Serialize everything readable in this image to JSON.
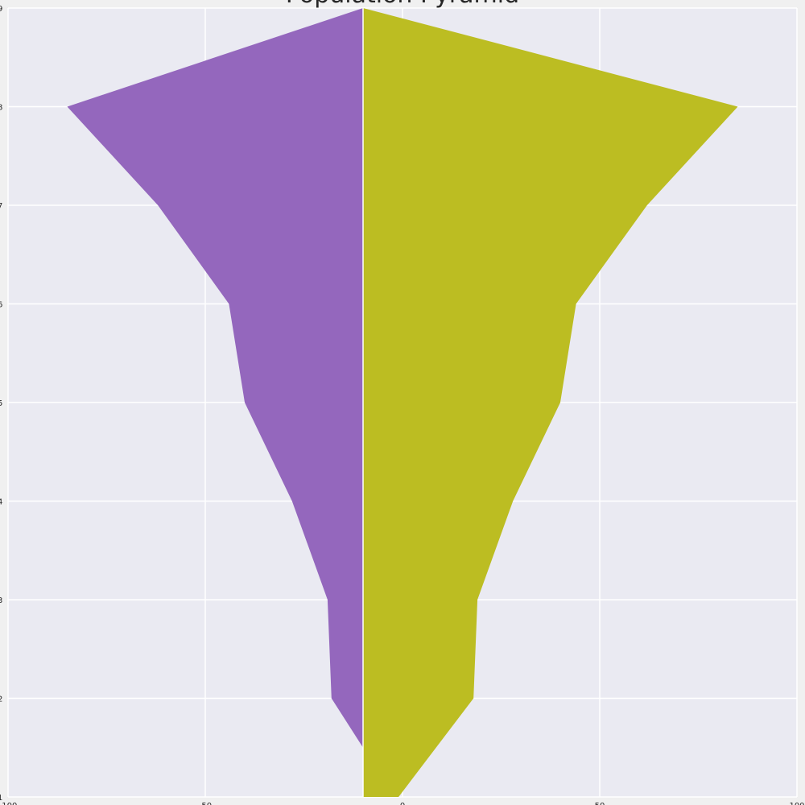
{
  "chart_data": {
    "type": "area",
    "title": "Population Pyramid",
    "xlabel": "",
    "ylabel": "",
    "xlim": [
      -100,
      100
    ],
    "ylim": [
      1,
      9
    ],
    "x_ticks": [
      "-100",
      "-50",
      "0",
      "50",
      "100"
    ],
    "y_ticks": [
      "1",
      "2",
      "3",
      "4",
      "5",
      "6",
      "7",
      "8",
      "9"
    ],
    "grid": true,
    "series": [
      {
        "color": "#9467bd",
        "points": [
          {
            "y": 1.5,
            "x": -10
          },
          {
            "y": 2,
            "x": -18
          },
          {
            "y": 3,
            "x": -19
          },
          {
            "y": 4,
            "x": -28
          },
          {
            "y": 5,
            "x": -40
          },
          {
            "y": 6,
            "x": -44
          },
          {
            "y": 7,
            "x": -62
          },
          {
            "y": 8,
            "x": -85
          },
          {
            "y": 9,
            "x": -10
          }
        ]
      },
      {
        "color": "#bcbd22",
        "points": [
          {
            "y": 1,
            "x": -1
          },
          {
            "y": 2,
            "x": 18
          },
          {
            "y": 3,
            "x": 19
          },
          {
            "y": 4,
            "x": 28
          },
          {
            "y": 5,
            "x": 40
          },
          {
            "y": 6,
            "x": 44
          },
          {
            "y": 7,
            "x": 62
          },
          {
            "y": 8,
            "x": 85
          },
          {
            "y": 9,
            "x": -10
          }
        ]
      }
    ],
    "baseline_x": -10,
    "colors": {
      "plot_bg": "#eaeaf2",
      "grid": "#ffffff",
      "page_bg": "#f0f0f0"
    }
  }
}
